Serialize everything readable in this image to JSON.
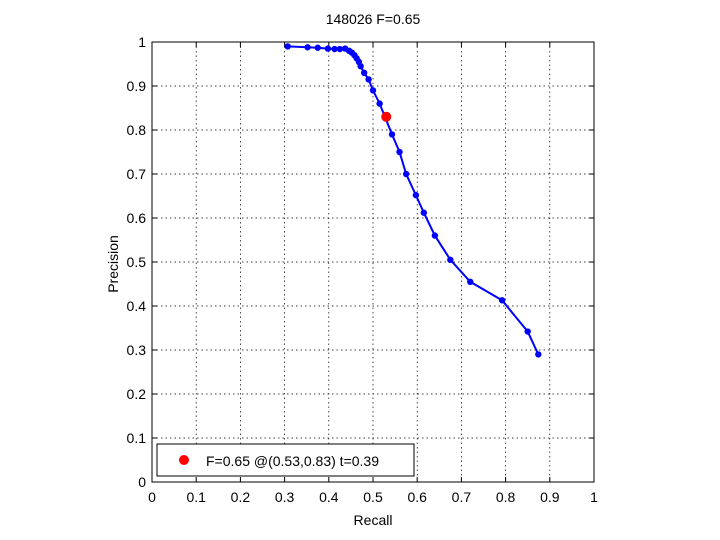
{
  "chart_data": {
    "type": "line",
    "title": "148026 F=0.65",
    "xlabel": "Recall",
    "ylabel": "Precision",
    "xlim": [
      0,
      1
    ],
    "ylim": [
      0,
      1
    ],
    "xticks": [
      "0",
      "0.1",
      "0.2",
      "0.3",
      "0.4",
      "0.5",
      "0.6",
      "0.7",
      "0.8",
      "0.9",
      "1"
    ],
    "yticks": [
      "0",
      "0.1",
      "0.2",
      "0.3",
      "0.4",
      "0.5",
      "0.6",
      "0.7",
      "0.8",
      "0.9",
      "1"
    ],
    "grid": true,
    "legend_position": "bottom-left",
    "series": [
      {
        "color": "#0000ff",
        "x": [
          0.307,
          0.352,
          0.375,
          0.398,
          0.413,
          0.425,
          0.437,
          0.446,
          0.452,
          0.458,
          0.463,
          0.468,
          0.472,
          0.48,
          0.49,
          0.5,
          0.515,
          0.543,
          0.56,
          0.575,
          0.597,
          0.615,
          0.64,
          0.675,
          0.72,
          0.792,
          0.85,
          0.874
        ],
        "y": [
          0.99,
          0.988,
          0.987,
          0.985,
          0.984,
          0.984,
          0.985,
          0.98,
          0.976,
          0.97,
          0.963,
          0.955,
          0.945,
          0.93,
          0.915,
          0.89,
          0.86,
          0.79,
          0.75,
          0.7,
          0.652,
          0.612,
          0.56,
          0.505,
          0.455,
          0.413,
          0.342,
          0.29
        ]
      }
    ],
    "highlight": {
      "x": 0.53,
      "y": 0.83,
      "color": "#ff0000",
      "label": "F=0.65 @(0.53,0.83) t=0.39"
    }
  }
}
